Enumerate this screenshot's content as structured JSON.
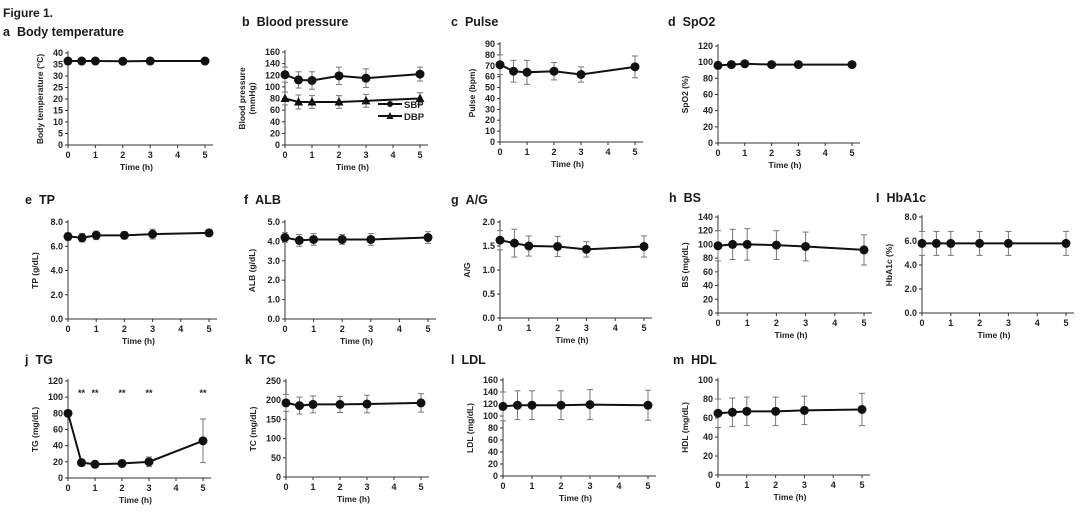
{
  "figure_title": "Figure 1.",
  "chart_data": [
    {
      "id": "a",
      "type": "line",
      "title": "Body temperature",
      "xlabel": "Time (h)",
      "ylabel": "Body temperature (°C)",
      "xlim": [
        0,
        5
      ],
      "xticks": [
        0,
        1,
        2,
        3,
        4,
        5
      ],
      "ylim": [
        0,
        40
      ],
      "yticks": [
        0,
        5,
        10,
        15,
        20,
        25,
        30,
        35,
        40
      ],
      "ytick_decimals": 0,
      "x": [
        0,
        0.5,
        1,
        2,
        3,
        5
      ],
      "series": [
        {
          "name": "Body temperature",
          "marker": "circle",
          "values": [
            36.5,
            36.5,
            36.5,
            36.4,
            36.5,
            36.5
          ],
          "errors": [
            0.3,
            0.3,
            0.3,
            0.3,
            0.3,
            0.3
          ]
        }
      ]
    },
    {
      "id": "b",
      "type": "line",
      "title": "Blood pressure",
      "xlabel": "Time (h)",
      "ylabel": "Blood pressure (mmHg)",
      "xlim": [
        0,
        5
      ],
      "xticks": [
        0,
        1,
        2,
        3,
        4,
        5
      ],
      "ylim": [
        0,
        160
      ],
      "yticks": [
        0,
        20,
        40,
        60,
        80,
        100,
        120,
        140,
        160
      ],
      "ytick_decimals": 0,
      "x": [
        0,
        0.5,
        1,
        2,
        3,
        5
      ],
      "legend": "bottom-right",
      "series": [
        {
          "name": "SBP",
          "marker": "circle",
          "values": [
            121,
            112,
            111,
            119,
            115,
            122
          ],
          "errors": [
            13,
            14,
            15,
            15,
            16,
            12
          ]
        },
        {
          "name": "DBP",
          "marker": "triangle",
          "values": [
            80,
            74,
            74,
            74,
            76,
            80
          ],
          "errors": [
            11,
            12,
            11,
            11,
            11,
            10
          ]
        }
      ]
    },
    {
      "id": "c",
      "type": "line",
      "title": "Pulse",
      "xlabel": "Time (h)",
      "ylabel": "Pulse (bpm)",
      "xlim": [
        0,
        5
      ],
      "xticks": [
        0,
        1,
        2,
        3,
        4,
        5
      ],
      "ylim": [
        0,
        90
      ],
      "yticks": [
        0,
        10,
        20,
        30,
        40,
        50,
        60,
        70,
        80,
        90
      ],
      "ytick_decimals": 0,
      "x": [
        0,
        0.5,
        1,
        2,
        3,
        5
      ],
      "series": [
        {
          "name": "Pulse",
          "marker": "circle",
          "values": [
            71,
            65,
            64,
            65,
            62,
            69
          ],
          "errors": [
            9,
            10,
            11,
            8,
            7,
            10
          ]
        }
      ]
    },
    {
      "id": "d",
      "type": "line",
      "title": "SpO2",
      "xlabel": "Time (h)",
      "ylabel": "SpO2 (%)",
      "xlim": [
        0,
        5
      ],
      "xticks": [
        0,
        1,
        2,
        3,
        4,
        5
      ],
      "ylim": [
        0,
        120
      ],
      "yticks": [
        0,
        20,
        40,
        60,
        80,
        100,
        120
      ],
      "ytick_decimals": 0,
      "x": [
        0,
        0.5,
        1,
        2,
        3,
        5
      ],
      "series": [
        {
          "name": "SpO2",
          "marker": "circle",
          "values": [
            96,
            97,
            98,
            97,
            97,
            97
          ],
          "errors": [
            1,
            1,
            1,
            1,
            1,
            1
          ]
        }
      ]
    },
    {
      "id": "e",
      "type": "line",
      "title": "TP",
      "xlabel": "Time (h)",
      "ylabel": "TP (g/dL)",
      "xlim": [
        0,
        5
      ],
      "xticks": [
        0,
        1,
        2,
        3,
        4,
        5
      ],
      "ylim": [
        0,
        8
      ],
      "yticks": [
        0,
        2,
        4,
        6,
        8
      ],
      "ytick_decimals": 1,
      "x": [
        0,
        0.5,
        1,
        2,
        3,
        5
      ],
      "series": [
        {
          "name": "TP",
          "marker": "circle",
          "values": [
            6.8,
            6.7,
            6.9,
            6.9,
            7.0,
            7.1
          ],
          "errors": [
            0.3,
            0.35,
            0.35,
            0.3,
            0.4,
            0.25
          ]
        }
      ]
    },
    {
      "id": "f",
      "type": "line",
      "title": "ALB",
      "xlabel": "Time (h)",
      "ylabel": "ALB (g/dL)",
      "xlim": [
        0,
        5
      ],
      "xticks": [
        0,
        1,
        2,
        3,
        4,
        5
      ],
      "ylim": [
        0,
        5
      ],
      "yticks": [
        0,
        1,
        2,
        3,
        4,
        5
      ],
      "ytick_decimals": 1,
      "x": [
        0,
        0.5,
        1,
        2,
        3,
        5
      ],
      "series": [
        {
          "name": "ALB",
          "marker": "circle",
          "values": [
            4.2,
            4.05,
            4.1,
            4.1,
            4.1,
            4.2
          ],
          "errors": [
            0.25,
            0.3,
            0.3,
            0.25,
            0.3,
            0.3
          ]
        }
      ]
    },
    {
      "id": "g",
      "type": "line",
      "title": "A/G",
      "xlabel": "Time (h)",
      "ylabel": "A/G",
      "xlim": [
        0,
        5
      ],
      "xticks": [
        0,
        1,
        2,
        3,
        4,
        5
      ],
      "ylim": [
        0,
        2
      ],
      "yticks": [
        0,
        0.5,
        1,
        1.5,
        2
      ],
      "ytick_decimals": 1,
      "x": [
        0,
        0.5,
        1,
        2,
        3,
        5
      ],
      "series": [
        {
          "name": "A/G",
          "marker": "circle",
          "values": [
            1.62,
            1.56,
            1.5,
            1.49,
            1.43,
            1.49
          ],
          "errors": [
            0.2,
            0.29,
            0.21,
            0.21,
            0.16,
            0.22
          ]
        }
      ]
    },
    {
      "id": "h",
      "type": "line",
      "title": "BS",
      "xlabel": "Time (h)",
      "ylabel": "BS (mg/dL)",
      "xlim": [
        0,
        5
      ],
      "xticks": [
        0,
        1,
        2,
        3,
        4,
        5
      ],
      "ylim": [
        0,
        140
      ],
      "yticks": [
        0,
        20,
        40,
        60,
        80,
        100,
        120,
        140
      ],
      "ytick_decimals": 0,
      "x": [
        0,
        0.5,
        1,
        2,
        3,
        5
      ],
      "series": [
        {
          "name": "BS",
          "marker": "circle",
          "values": [
            98,
            100,
            100,
            99,
            97,
            92
          ],
          "errors": [
            22,
            22,
            23,
            21,
            21,
            22
          ]
        }
      ]
    },
    {
      "id": "i",
      "type": "line",
      "title": "HbA1c",
      "xlabel": "Time (h)",
      "ylabel": "HbA1c (%)",
      "xlim": [
        0,
        5
      ],
      "xticks": [
        0,
        1,
        2,
        3,
        4,
        5
      ],
      "ylim": [
        0,
        8
      ],
      "yticks": [
        0,
        2,
        4,
        6,
        8
      ],
      "ytick_decimals": 1,
      "x": [
        0,
        0.5,
        1,
        2,
        3,
        5
      ],
      "series": [
        {
          "name": "HbA1c",
          "marker": "circle",
          "values": [
            5.8,
            5.8,
            5.8,
            5.8,
            5.8,
            5.8
          ],
          "errors": [
            1.0,
            1.0,
            1.0,
            1.0,
            1.0,
            1.0
          ]
        }
      ]
    },
    {
      "id": "j",
      "type": "line",
      "title": "TG",
      "xlabel": "Time (h)",
      "ylabel": "TG (mg/dL)",
      "xlim": [
        0,
        5
      ],
      "xticks": [
        0,
        1,
        2,
        3,
        4,
        5
      ],
      "ylim": [
        0,
        120
      ],
      "yticks": [
        0,
        20,
        40,
        60,
        80,
        100,
        120
      ],
      "ytick_decimals": 0,
      "x": [
        0,
        0.5,
        1,
        2,
        3,
        5
      ],
      "series": [
        {
          "name": "TG",
          "marker": "circle",
          "values": [
            80,
            19,
            17,
            18,
            20,
            46
          ],
          "errors": [
            2,
            4,
            4,
            4,
            6,
            27
          ]
        }
      ],
      "annotations": [
        {
          "x": 0.5,
          "text": "**"
        },
        {
          "x": 1,
          "text": "**"
        },
        {
          "x": 2,
          "text": "**"
        },
        {
          "x": 3,
          "text": "**"
        },
        {
          "x": 5,
          "text": "**"
        }
      ],
      "annotation_y": 105
    },
    {
      "id": "k",
      "type": "line",
      "title": "TC",
      "xlabel": "Time (h)",
      "ylabel": "TC (mg/dL)",
      "xlim": [
        0,
        5
      ],
      "xticks": [
        0,
        1,
        2,
        3,
        4,
        5
      ],
      "ylim": [
        0,
        250
      ],
      "yticks": [
        0,
        50,
        100,
        150,
        200,
        250
      ],
      "ytick_decimals": 0,
      "x": [
        0,
        0.5,
        1,
        2,
        3,
        5
      ],
      "series": [
        {
          "name": "TC",
          "marker": "circle",
          "values": [
            193,
            186,
            189,
            189,
            190,
            193
          ],
          "errors": [
            22,
            22,
            22,
            21,
            23,
            24
          ]
        }
      ]
    },
    {
      "id": "l",
      "type": "line",
      "title": "LDL",
      "xlabel": "Time (h)",
      "ylabel": "LDL (mg/dL)",
      "xlim": [
        0,
        5
      ],
      "xticks": [
        0,
        1,
        2,
        3,
        4,
        5
      ],
      "ylim": [
        0,
        160
      ],
      "yticks": [
        0,
        20,
        40,
        60,
        80,
        100,
        120,
        140,
        160
      ],
      "ytick_decimals": 0,
      "x": [
        0,
        0.5,
        1,
        2,
        3,
        5
      ],
      "series": [
        {
          "name": "LDL",
          "marker": "circle",
          "values": [
            116,
            118,
            118,
            118,
            119,
            118
          ],
          "errors": [
            24,
            24,
            24,
            24,
            25,
            25
          ]
        }
      ]
    },
    {
      "id": "m",
      "type": "line",
      "title": "HDL",
      "xlabel": "Time (h)",
      "ylabel": "HDL (mg/dL)",
      "xlim": [
        0,
        5
      ],
      "xticks": [
        0,
        1,
        2,
        3,
        4,
        5
      ],
      "ylim": [
        0,
        100
      ],
      "yticks": [
        0,
        20,
        40,
        60,
        80,
        100
      ],
      "ytick_decimals": 0,
      "x": [
        0,
        0.5,
        1,
        2,
        3,
        5
      ],
      "series": [
        {
          "name": "HDL",
          "marker": "circle",
          "values": [
            65,
            66,
            67,
            67,
            68,
            69
          ],
          "errors": [
            15,
            15,
            15,
            15,
            15,
            17
          ]
        }
      ]
    }
  ]
}
